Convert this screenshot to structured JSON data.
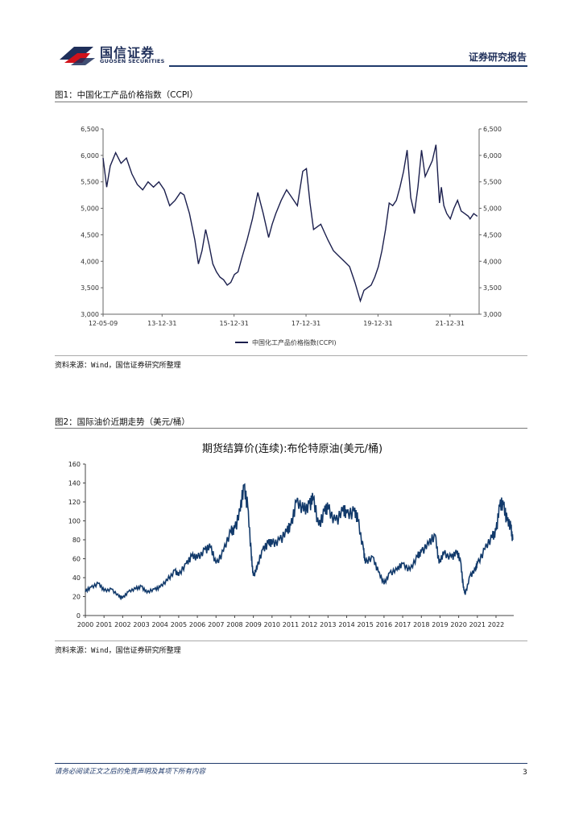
{
  "header": {
    "company_cn": "国信证券",
    "company_en": "GUOSEN SECURITIES",
    "report_type": "证券研究报告"
  },
  "colors": {
    "brand_navy": "#1f2f5a",
    "logo_red": "#d0121b",
    "series_dark": "#1b1f4d",
    "series_blue": "#123a6b"
  },
  "figure1": {
    "title": "图1：中国化工产品价格指数（CCPI）",
    "source": "资料来源：Wind，国信证券研究所整理",
    "chart_data": {
      "type": "line",
      "title": "",
      "legend": "中国化工产品价格指数(CCPI)",
      "legend_position": "bottom",
      "ylim": [
        3000,
        6500
      ],
      "yticks": [
        "3,000",
        "3,500",
        "4,000",
        "4,500",
        "5,000",
        "5,500",
        "6,000",
        "6,500"
      ],
      "xticks": [
        "12-05-09",
        "13-12-31",
        "15-12-31",
        "17-12-31",
        "19-12-31",
        "21-12-31"
      ],
      "series": [
        {
          "name": "中国化工产品价格指数(CCPI)",
          "x": [
            2012.35,
            2012.45,
            2012.55,
            2012.7,
            2012.85,
            2013.0,
            2013.15,
            2013.3,
            2013.45,
            2013.6,
            2013.75,
            2013.9,
            2014.05,
            2014.2,
            2014.35,
            2014.5,
            2014.6,
            2014.75,
            2014.9,
            2015.0,
            2015.1,
            2015.2,
            2015.3,
            2015.4,
            2015.5,
            2015.6,
            2015.7,
            2015.8,
            2015.9,
            2016.0,
            2016.1,
            2016.2,
            2016.35,
            2016.5,
            2016.65,
            2016.8,
            2016.95,
            2017.05,
            2017.15,
            2017.3,
            2017.45,
            2017.6,
            2017.75,
            2017.9,
            2018.0,
            2018.1,
            2018.2,
            2018.3,
            2018.4,
            2018.5,
            2018.6,
            2018.75,
            2018.9,
            2019.05,
            2019.2,
            2019.35,
            2019.5,
            2019.6,
            2019.7,
            2019.8,
            2019.9,
            2020.0,
            2020.1,
            2020.2,
            2020.3,
            2020.4,
            2020.5,
            2020.6,
            2020.7,
            2020.8,
            2020.9,
            2021.0,
            2021.1,
            2021.2,
            2021.3,
            2021.4,
            2021.5,
            2021.6,
            2021.7,
            2021.75,
            2021.82,
            2021.9,
            2022.0,
            2022.1,
            2022.2,
            2022.3,
            2022.4,
            2022.5,
            2022.55,
            2022.65,
            2022.75
          ],
          "values": [
            5950,
            5400,
            5800,
            6050,
            5850,
            5950,
            5650,
            5450,
            5350,
            5500,
            5400,
            5500,
            5350,
            5050,
            5150,
            5300,
            5250,
            4900,
            4400,
            3950,
            4200,
            4600,
            4300,
            3950,
            3800,
            3700,
            3650,
            3550,
            3600,
            3750,
            3800,
            4050,
            4400,
            4800,
            5300,
            4900,
            4450,
            4700,
            4900,
            5150,
            5350,
            5200,
            5050,
            5700,
            5750,
            5100,
            4600,
            4650,
            4700,
            4550,
            4400,
            4200,
            4100,
            4000,
            3900,
            3600,
            3250,
            3450,
            3500,
            3550,
            3700,
            3900,
            4200,
            4600,
            5100,
            5050,
            5150,
            5400,
            5700,
            6100,
            5200,
            4900,
            5400,
            6100,
            5600,
            5750,
            5900,
            6200,
            5100,
            5400,
            5050,
            4900,
            4800,
            5000,
            5150,
            4950,
            4900,
            4850,
            4800,
            4900,
            4850
          ]
        }
      ]
    }
  },
  "figure2": {
    "title": "图2：国际油价近期走势（美元/桶）",
    "source": "资料来源：Wind，国信证券研究所整理",
    "chart_data": {
      "type": "line",
      "title": "期货结算价(连续):布伦特原油(美元/桶)",
      "ylim": [
        0,
        160
      ],
      "yticks": [
        "0",
        "20",
        "40",
        "60",
        "80",
        "100",
        "120",
        "140",
        "160"
      ],
      "xticks": [
        "2000",
        "2001",
        "2002",
        "2003",
        "2004",
        "2005",
        "2006",
        "2007",
        "2008",
        "2009",
        "2010",
        "2011",
        "2012",
        "2013",
        "2014",
        "2015",
        "2016",
        "2017",
        "2018",
        "2019",
        "2020",
        "2021",
        "2022"
      ],
      "series": [
        {
          "name": "布伦特原油",
          "x": [
            2000.0,
            2000.3,
            2000.7,
            2001.0,
            2001.4,
            2001.8,
            2002.0,
            2002.3,
            2002.7,
            2003.0,
            2003.3,
            2003.7,
            2004.0,
            2004.4,
            2004.8,
            2005.0,
            2005.4,
            2005.7,
            2006.0,
            2006.4,
            2006.7,
            2007.0,
            2007.4,
            2007.8,
            2008.0,
            2008.3,
            2008.5,
            2008.7,
            2008.9,
            2009.0,
            2009.2,
            2009.5,
            2009.8,
            2010.0,
            2010.4,
            2010.8,
            2011.0,
            2011.3,
            2011.7,
            2012.0,
            2012.2,
            2012.5,
            2012.8,
            2013.0,
            2013.4,
            2013.8,
            2014.0,
            2014.4,
            2014.6,
            2014.9,
            2015.0,
            2015.4,
            2015.7,
            2016.0,
            2016.3,
            2016.7,
            2017.0,
            2017.4,
            2017.8,
            2018.0,
            2018.4,
            2018.75,
            2018.95,
            2019.2,
            2019.6,
            2019.9,
            2020.1,
            2020.25,
            2020.35,
            2020.6,
            2020.9,
            2021.0,
            2021.4,
            2021.8,
            2022.0,
            2022.2,
            2022.4,
            2022.6,
            2022.8,
            2022.9
          ],
          "values": [
            25,
            30,
            34,
            26,
            28,
            20,
            19,
            25,
            28,
            31,
            24,
            28,
            30,
            37,
            48,
            42,
            55,
            63,
            60,
            70,
            72,
            55,
            68,
            88,
            92,
            110,
            138,
            115,
            60,
            42,
            50,
            70,
            77,
            75,
            80,
            88,
            95,
            120,
            110,
            118,
            123,
            95,
            110,
            112,
            100,
            110,
            108,
            110,
            100,
            70,
            55,
            62,
            46,
            33,
            45,
            48,
            55,
            48,
            62,
            68,
            75,
            85,
            55,
            65,
            62,
            66,
            58,
            30,
            22,
            42,
            48,
            55,
            70,
            82,
            90,
            115,
            118,
            100,
            92,
            80
          ]
        }
      ]
    }
  },
  "footer": {
    "disclaimer": "请务必阅读正文之后的免责声明及其项下所有内容",
    "page_number": "3"
  }
}
